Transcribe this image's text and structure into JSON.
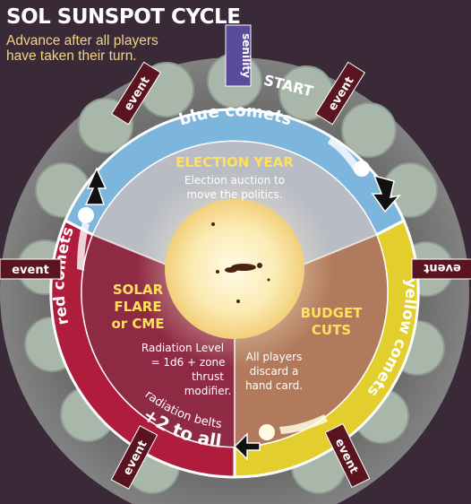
{
  "title": "SOL SUNSPOT CYCLE",
  "subtitle": [
    "Advance after all players",
    "have taken their turn."
  ],
  "track": {
    "senility": "senility",
    "start": "START",
    "event": "event"
  },
  "ring_labels": {
    "blue": "blue comets",
    "yellow": "yellow comets",
    "red": "red comets",
    "radiation": "+2 to all",
    "radiation_sub": "radiation belts"
  },
  "sectors": {
    "election": {
      "title": "ELECTION YEAR",
      "lines": [
        "Election auction to",
        "move the politics."
      ]
    },
    "budget": {
      "title": [
        "BUDGET",
        "CUTS"
      ],
      "lines": [
        "All players",
        "discard a",
        "hand card."
      ]
    },
    "solar": {
      "title": [
        "SOLAR",
        "FLARE",
        "or CME"
      ],
      "lines": [
        "Radiation Level",
        "= 1d6 + zone",
        "thrust",
        "modifier."
      ]
    }
  },
  "colors": {
    "blue_ring": "#7db6dc",
    "yellow_ring": "#e2cf2e",
    "red_ring": "#b01c3c",
    "title_yellow": "#ffe15a",
    "event_banner": "#5a1420"
  }
}
